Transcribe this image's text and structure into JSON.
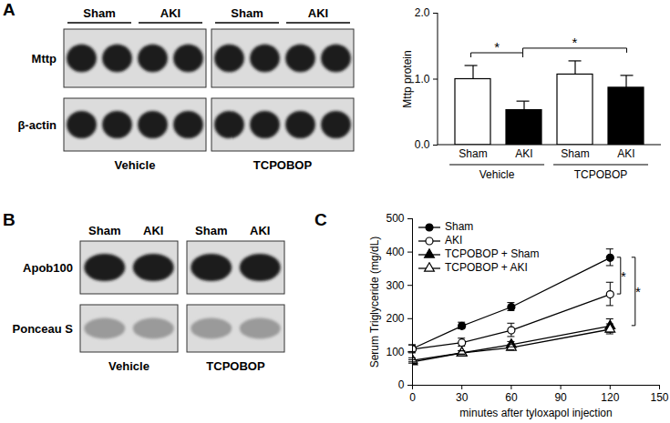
{
  "panel_labels": [
    "A",
    "B",
    "C"
  ],
  "blots": [
    {
      "lane_labels": [
        "Sham",
        "AKI"
      ],
      "lanes_per_label": 2,
      "rows": [
        "Mttp",
        "β-actin"
      ],
      "conditions": [
        "Vehicle",
        "TCPOBOP"
      ]
    },
    {
      "lane_labels": [
        "Sham",
        "AKI"
      ],
      "lanes_per_label": 1,
      "rows": [
        "Apob100",
        "Ponceau S"
      ],
      "conditions": [
        "Vehicle",
        "TCPOBOP"
      ]
    }
  ],
  "chart_data": [
    {
      "type": "bar",
      "categories": [
        "Sham",
        "AKI",
        "Sham",
        "AKI"
      ],
      "group_labels": [
        "Vehicle",
        "Vehicle",
        "TCPOBOP",
        "TCPOBOP"
      ],
      "values": [
        1.0,
        0.53,
        1.07,
        0.87
      ],
      "errors": [
        0.2,
        0.13,
        0.2,
        0.18
      ],
      "colors": [
        "#ffffff",
        "#000000",
        "#ffffff",
        "#000000"
      ],
      "y_label": "Mttp protein",
      "ylim": [
        0,
        2
      ],
      "yticks": [
        0,
        1,
        2
      ],
      "annotations": [
        {
          "text": "*",
          "from": 0,
          "to": 1
        },
        {
          "text": "*",
          "from": 1,
          "to": 3
        }
      ]
    },
    {
      "type": "line",
      "x": [
        0,
        30,
        60,
        120
      ],
      "x_label": "minutes after tyloxapol injection",
      "y_label": "Serum Triglyceride (mg/dL)",
      "xlim": [
        0,
        150
      ],
      "xticks": [
        0,
        30,
        60,
        90,
        120,
        150
      ],
      "ylim": [
        0,
        500
      ],
      "yticks": [
        0,
        100,
        200,
        300,
        400,
        500
      ],
      "legend": "top-left",
      "series": [
        {
          "name": "Sham",
          "color": "#000000",
          "marker": "circle",
          "values": [
            110,
            178,
            235,
            383
          ],
          "errors": [
            10,
            10,
            12,
            25
          ]
        },
        {
          "name": "AKI",
          "color": "#000000",
          "marker": "open-circle",
          "values": [
            108,
            128,
            165,
            273
          ],
          "errors": [
            12,
            12,
            20,
            35
          ]
        },
        {
          "name": "TCPOBOP + Sham",
          "color": "#000000",
          "marker": "triangle",
          "values": [
            70,
            97,
            122,
            178
          ],
          "errors": [
            5,
            5,
            8,
            20
          ]
        },
        {
          "name": "TCPOBOP + AKI",
          "color": "#000000",
          "marker": "open-triangle",
          "values": [
            75,
            97,
            113,
            168
          ],
          "errors": [
            6,
            5,
            8,
            15
          ]
        }
      ],
      "annotations": [
        {
          "text": "*",
          "from": "Sham",
          "to": "AKI"
        },
        {
          "text": "*",
          "from": "Sham",
          "to": "TCPOBOP + Sham"
        }
      ]
    }
  ]
}
